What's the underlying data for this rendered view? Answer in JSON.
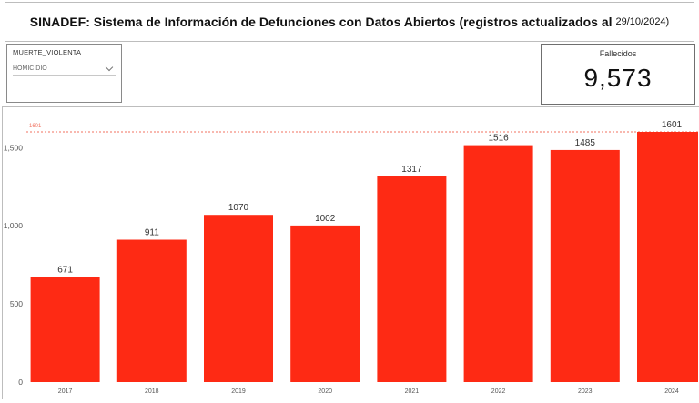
{
  "header": {
    "title": "SINADEF: Sistema de Información de Defunciones con Datos Abiertos (registros actualizados al",
    "date": "29/10/2024)"
  },
  "filter": {
    "label": "MUERTE_VIOLENTA",
    "selected": "HOMICIDIO"
  },
  "kpi": {
    "label": "Fallecidos",
    "value": "9,573"
  },
  "colors": {
    "bar": "#fe2a14",
    "refline": "#f0715f"
  },
  "chart_data": {
    "type": "bar",
    "categories": [
      "2017",
      "2018",
      "2019",
      "2020",
      "2021",
      "2022",
      "2023",
      "2024"
    ],
    "values": [
      671,
      911,
      1070,
      1002,
      1317,
      1516,
      1485,
      1601
    ],
    "data_labels": [
      "671",
      "911",
      "1070",
      "1002",
      "1317",
      "1516",
      "1485",
      "1601"
    ],
    "ylim": [
      0,
      1601
    ],
    "yticks": [
      0,
      500,
      1000,
      1500
    ],
    "ytick_labels": [
      "0",
      "500",
      "1,000",
      "1,500"
    ],
    "reference_line": {
      "value": 1601,
      "label": "1601"
    },
    "grid": false
  }
}
